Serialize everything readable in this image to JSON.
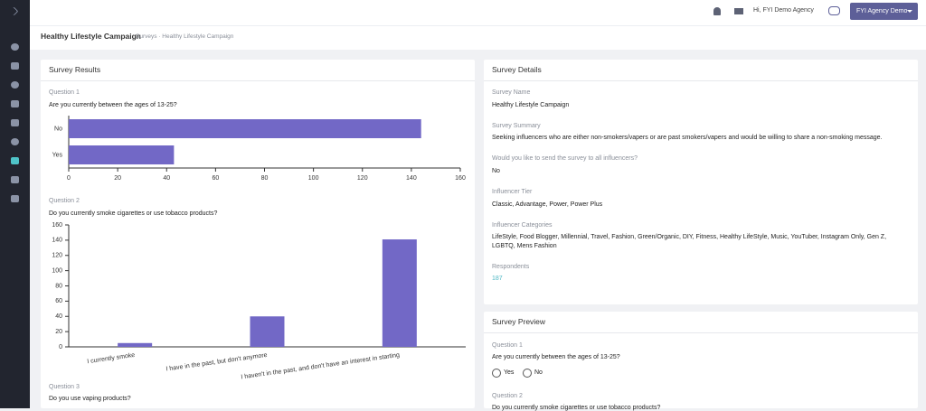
{
  "nav": {
    "user_greeting": "Hi, FYI Demo Agency",
    "account_button": "FYI Agency Demo"
  },
  "header": {
    "title": "Healthy Lifestyle Campaign",
    "breadcrumb": [
      "Surveys",
      "Healthy Lifestyle Campaign"
    ]
  },
  "survey_results": {
    "title": "Survey Results",
    "questions": [
      {
        "label": "Question 1",
        "text": "Are you currently between the ages of 13-25?",
        "chart": {
          "type": "bar",
          "orientation": "horizontal",
          "categories": [
            "No",
            "Yes"
          ],
          "values": [
            144,
            43
          ],
          "color": "#7268c6",
          "xlim": [
            0,
            160
          ],
          "xticks": [
            0,
            20,
            40,
            60,
            80,
            100,
            120,
            140,
            160
          ]
        }
      },
      {
        "label": "Question 2",
        "text": "Do you currently smoke cigarettes or use tobacco products?",
        "chart": {
          "type": "bar",
          "orientation": "vertical",
          "categories": [
            "I currently smoke",
            "I have in the past, but don't anymore",
            "I haven't in the past, and don't have an interest in starting"
          ],
          "values": [
            5,
            40,
            141
          ],
          "color": "#7268c6",
          "ylim": [
            0,
            160
          ],
          "yticks": [
            0,
            20,
            40,
            60,
            80,
            100,
            120,
            140,
            160
          ]
        }
      },
      {
        "label": "Question 3",
        "text": "Do you use vaping products?"
      }
    ]
  },
  "survey_details": {
    "title": "Survey Details",
    "fields": [
      {
        "label": "Survey Name",
        "value": "Healthy Lifestyle Campaign"
      },
      {
        "label": "Survey Summary",
        "value": "Seeking influencers who are either non-smokers/vapers or are past smokers/vapers and would be willing to share a non-smoking message."
      },
      {
        "label": "Would you like to send the survey to all influencers?",
        "value": "No"
      },
      {
        "label": "Influencer Tier",
        "value": "Classic, Advantage, Power, Power Plus"
      },
      {
        "label": "Influencer Categories",
        "value": "LifeStyle, Food Blogger, Millennial, Travel, Fashion, Green/Organic, DIY, Fitness, Healthy LifeStyle, Music, YouTuber, Instagram Only, Gen Z, LGBTQ, Mens Fashion"
      },
      {
        "label": "Respondents",
        "value": "187"
      }
    ]
  },
  "survey_preview": {
    "title": "Survey Preview",
    "questions": [
      {
        "label": "Question 1",
        "text": "Are you currently between the ages of 13-25?",
        "options": [
          "Yes",
          "No"
        ]
      },
      {
        "label": "Question 2",
        "text": "Do you currently smoke cigarettes or use tobacco products?"
      }
    ]
  }
}
